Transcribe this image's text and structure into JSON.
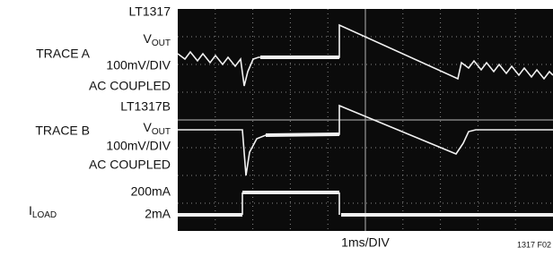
{
  "labels": {
    "trace_a": {
      "chip": "LT1317",
      "signal": {
        "main": "V",
        "sub": "OUT"
      },
      "scale": "100mV/DIV",
      "coupling": "AC COUPLED",
      "name": "TRACE A"
    },
    "trace_b": {
      "chip": "LT1317B",
      "signal": {
        "main": "V",
        "sub": "OUT"
      },
      "scale": "100mV/DIV",
      "coupling": "AC COUPLED",
      "name": "TRACE B"
    },
    "load": {
      "name": {
        "main": "I",
        "sub": "LOAD"
      },
      "high": "200mA",
      "low": "2mA"
    },
    "time_scale": "1ms/DIV",
    "figure_id": "1317 F02"
  }
}
